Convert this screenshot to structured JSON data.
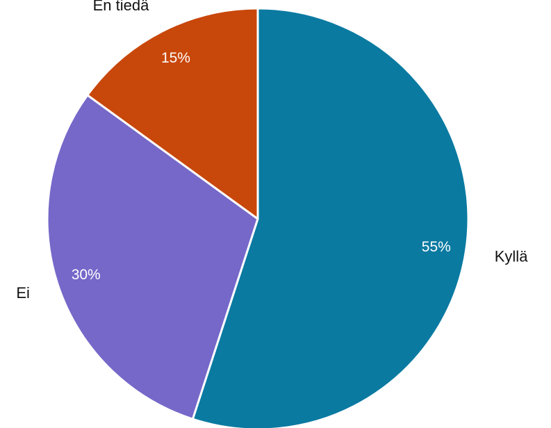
{
  "chart_data": {
    "type": "pie",
    "slices": [
      {
        "label": "Kyllä",
        "value": 55,
        "value_label": "55%",
        "color": "#0a7aa1"
      },
      {
        "label": "Ei",
        "value": 30,
        "value_label": "30%",
        "color": "#7568c9"
      },
      {
        "label": "En tiedä",
        "value": 15,
        "value_label": "15%",
        "color": "#c8470a"
      }
    ]
  }
}
